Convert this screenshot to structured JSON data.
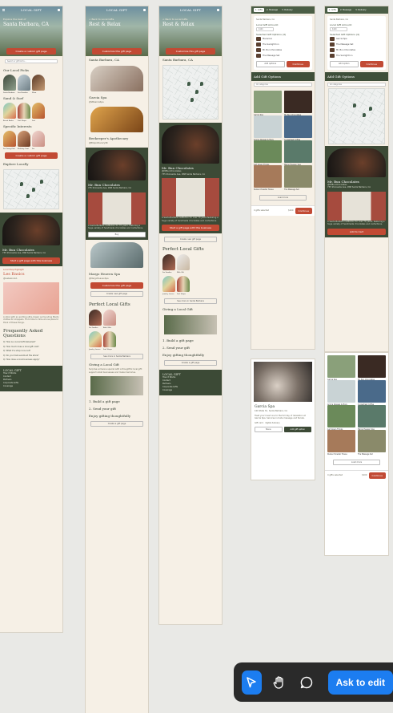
{
  "brand": {
    "logo": "LOCAL\nGIFT",
    "accent": "#c24a34",
    "green": "#3c4a36",
    "cream": "#f6f0e6"
  },
  "frame1": {
    "tagline": "Explore the best of",
    "city": "Santa Barbara, CA",
    "cta": "Create a custom gift page",
    "search_placeholder": "Search or gift list to...",
    "sec_local_picks": "Our Local Picks",
    "picks": [
      "Santa Barbara",
      "Sea Paradise",
      "Mesa"
    ],
    "sec_sand_surf": "Sand & Surf",
    "surf": [
      "Beach Books",
      "Surf Shops",
      "Surf"
    ],
    "sec_specific": "Specific Interests",
    "specific": [
      "For Young Kids",
      "Birthday Treat",
      "For"
    ],
    "cta2": "Create a custom gift page",
    "sec_explore": "Explore Locally",
    "shop_name": "Mr. Bun Chocolates",
    "shop_addr": "735 Shoreside Ave, #68\nSanta Barbara, CA",
    "shop_cta": "Start a gift page with this business",
    "highlight_label": "Local Shop Highlight",
    "highlight_name": "Les Basics",
    "highlight_sub": "@lesbasicsCA",
    "highlight_desc": "A store with an exciting ultra-classic surrounding Plenty clothes for shoppers. From time to time at one place to think of these things.",
    "faq_title": "Frequently Asked Questions",
    "faq": [
      "Q: How is a Local Gift delivered?",
      "Q: How much does a local gift cost?",
      "Q: What if a shop runs out?",
      "Q: Do you host events at the store?",
      "Q: How does a local business apply?"
    ],
    "footer": [
      "How it Works",
      "Contact",
      "Partners",
      "Corporate Gifts",
      "Coverage"
    ],
    "footer_legal": [
      "Site Terms",
      "Privacy Policy"
    ]
  },
  "frame2": {
    "breadcrumb": "< Back to Local Gifts",
    "title": "Rest & Relax",
    "cta": "Customize this gift page",
    "city": "Santa Barbara, CA",
    "items": [
      {
        "name": "Garcia Spa",
        "sub": "@SBGarciaSpa"
      },
      {
        "name": "Beekeeper's Apothecary",
        "sub": "@BKApothecarySB"
      }
    ],
    "featured_name": "Mr. Bun Chocolates",
    "featured_addr": "735 Shoreside Ave, #68\nSanta Barbara, CA",
    "featured_desc": "A Santa Barbara institution for 70 years, featuring a huge variety of handmade chocolates and confections.",
    "featured_btn": "Buy",
    "next_name": "Margo Heaven Spa",
    "next_sub": "@MargoHeavenSpa",
    "next_cta": "Customize this gift page",
    "next_cta2": "Create new gift page",
    "perfect_title": "Perfect Local Gifts",
    "perfect": [
      "For Foodies",
      "Bath Gifts",
      "Jewelry Lovers",
      "Surf Shops"
    ],
    "see_more": "See more in Santa Barbara",
    "giving_title": "Giving a Local Gift",
    "giving_desc": "Surprise someone special with a thoughtful local gift: support small businesses and make memories.",
    "steps": [
      "1. Build a gift page",
      "2. Send your gift",
      "Enjoy gifting thoughtfully"
    ],
    "step_cta": "Create a gift page"
  },
  "frame3": {
    "breadcrumb": "< Back to Local Gifts",
    "title": "Rest & Relax",
    "cta": "Customize this gift page",
    "city": "Santa Barbara, CA",
    "shop_name": "Mr. Bun Chocolates",
    "shop_sub": "@MrBunChocolates",
    "shop_addr": "735 Shoreside Ave, #68\nSanta Barbara, CA",
    "shop_desc": "A Santa Barbara institution for over 70 years featuring a huge variety of handmade chocolates and confections.",
    "shop_cta": "Start a gift page with this business",
    "create_link": "Create new gift page",
    "perfect_title": "Perfect Local Gifts",
    "perfect": [
      "For Foodies",
      "With Gift",
      "Jewelry Lovers",
      "Surf Shops"
    ],
    "see_more": "See more in Santa Barbara",
    "giving_title": "Giving a Local Gift",
    "steps": [
      "1. Build a gift page",
      "2. Send your gift",
      "Enjoy gifting thoughtfully"
    ],
    "step_cta": "Create a gift page",
    "footer": [
      "How it Works",
      "Contact",
      "Partners",
      "Corporate Gifts",
      "Coverage"
    ],
    "footer_legal": [
      "Gift Terms",
      "Privacy Policy"
    ]
  },
  "frame4": {
    "tabs": [
      "1. Gifts",
      "2. Message",
      "3. Delivery"
    ],
    "city": "Santa Barbara, CA",
    "change": "Change",
    "amount_label": "Local Gift Amount:",
    "amount_value": "$100",
    "selected_title": "Selected Gift Options (4)",
    "selected": [
      "Macaroon",
      "The Sunlight Inn",
      "Mr. Bun Chocolates",
      "The Massage Set"
    ],
    "add_btn": "Add options",
    "continue_btn": "Continue",
    "add_title": "Add Gift Options",
    "filter": "All categories",
    "options": [
      "Garcia Spa",
      "Mr. Bun Chocolates",
      "Aroma Glasses & More",
      "Cyclestreet Coffee",
      "Just Green Things",
      "Margo Heaven Spa",
      "Dukes Chowder House",
      "The Massage Set"
    ],
    "load_more": "Load more",
    "footer_count": "4 gifts selected",
    "footer_sub": "$100",
    "footer_btn": "Continue"
  },
  "frame5": {
    "name": "Garcia Spa",
    "addr": "100 State St., Santa Barbara, CA",
    "desc": "Treat your loved one to the full day of relaxation at Garcia Spa. Services include massage and facials.",
    "tag": "Gift card · digital delivery",
    "cancel": "None",
    "add": "Add gift option"
  },
  "frame6": {
    "tabs": [
      "1. Gifts",
      "2. Message",
      "3. Delivery"
    ],
    "city": "Santa Barbara, CA",
    "change": "Change",
    "amount_label": "Local Gift Amount:",
    "amount_value": "$100",
    "selected_title": "Selected Gift Options (4)",
    "selected": [
      "Garcia Spa",
      "The Massage Set",
      "Mr. Bun Chocolates",
      "The Sunlight Inn"
    ],
    "add_btn": "Add option",
    "continue_btn": "Continue",
    "add_title": "Add Gift Options",
    "filter": "All categories",
    "shop_name": "Mr. Bun Chocolates",
    "shop_sub": "@MrBunChocolates",
    "shop_addr": "735 Shoreside Ave, #68\nSanta Barbara, CA",
    "shop_desc": "A Santa Barbara institution for over 70 years, featuring a huge variety of handmade chocolates and confections.",
    "shop_cta": "Add to Cart"
  },
  "frame7": {
    "options": [
      "Garcia Spa",
      "Mr. Bun Chocolates",
      "Aroma Glasses & More",
      "Cyclestreet Coffee",
      "Just Green Things",
      "Margo Heaven Spa",
      "Dukes Chowder House",
      "The Massage Set"
    ],
    "load_more": "Load more",
    "footer_count": "4 gifts selected",
    "footer_sub": "$100",
    "footer_btn": "Continue"
  },
  "toolbar": {
    "ask_label": "Ask to edit",
    "tools": [
      "pointer-tool",
      "hand-tool",
      "comment-tool"
    ]
  }
}
